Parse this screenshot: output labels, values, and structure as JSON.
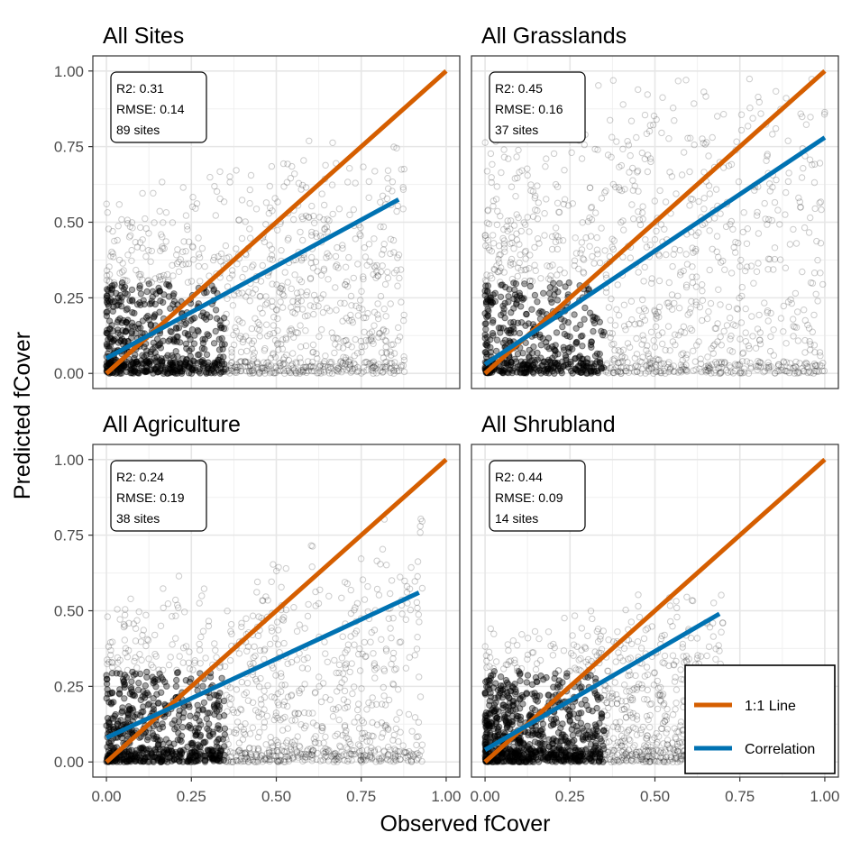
{
  "figure": {
    "xlabel": "Observed fCover",
    "ylabel": "Predicted fCover"
  },
  "legend": {
    "items": [
      {
        "label": "1:1 Line",
        "color": "#d55e00"
      },
      {
        "label": "Correlation",
        "color": "#0072b2"
      }
    ]
  },
  "chart_data": [
    {
      "type": "scatter",
      "title": "All Sites",
      "xlim": [
        -0.04,
        1.04
      ],
      "ylim": [
        -0.05,
        1.05
      ],
      "xticks": [
        "0.00",
        "0.25",
        "0.50",
        "0.75",
        "1.00"
      ],
      "yticks": [
        "0.00",
        "0.25",
        "0.50",
        "0.75",
        "1.00"
      ],
      "stats": {
        "r2": "R2: 0.31",
        "rmse": "RMSE: 0.14",
        "sites": "89 sites"
      },
      "one_to_one": {
        "x": [
          0,
          1
        ],
        "y": [
          0,
          1
        ]
      },
      "correlation": {
        "x": [
          0.0,
          0.86
        ],
        "y": [
          0.05,
          0.575
        ]
      },
      "point_cloud": {
        "x_range": [
          0,
          0.88
        ],
        "y_range": [
          0,
          0.77
        ],
        "dense_to_y": 0.6
      }
    },
    {
      "type": "scatter",
      "title": "All Grasslands",
      "xlim": [
        -0.04,
        1.04
      ],
      "ylim": [
        -0.05,
        1.05
      ],
      "xticks": [
        "0.00",
        "0.25",
        "0.50",
        "0.75",
        "1.00"
      ],
      "yticks": [
        "0.00",
        "0.25",
        "0.50",
        "0.75",
        "1.00"
      ],
      "stats": {
        "r2": "R2: 0.45",
        "rmse": "RMSE: 0.16",
        "sites": "37 sites"
      },
      "one_to_one": {
        "x": [
          0,
          1
        ],
        "y": [
          0,
          1
        ]
      },
      "correlation": {
        "x": [
          0.0,
          1.0
        ],
        "y": [
          0.03,
          0.78
        ]
      },
      "point_cloud": {
        "x_range": [
          0,
          1.0
        ],
        "y_range": [
          0,
          0.98
        ],
        "dense_to_y": 0.9
      }
    },
    {
      "type": "scatter",
      "title": "All Agriculture",
      "xlim": [
        -0.04,
        1.04
      ],
      "ylim": [
        -0.05,
        1.05
      ],
      "xticks": [
        "0.00",
        "0.25",
        "0.50",
        "0.75",
        "1.00"
      ],
      "yticks": [
        "0.00",
        "0.25",
        "0.50",
        "0.75",
        "1.00"
      ],
      "stats": {
        "r2": "R2: 0.24",
        "rmse": "RMSE: 0.19",
        "sites": "38 sites"
      },
      "one_to_one": {
        "x": [
          0,
          1
        ],
        "y": [
          0,
          1
        ]
      },
      "correlation": {
        "x": [
          0.0,
          0.92
        ],
        "y": [
          0.08,
          0.56
        ]
      },
      "point_cloud": {
        "x_range": [
          0,
          0.93
        ],
        "y_range": [
          0,
          0.82
        ],
        "dense_to_y": 0.55
      }
    },
    {
      "type": "scatter",
      "title": "All Shrubland",
      "xlim": [
        -0.04,
        1.04
      ],
      "ylim": [
        -0.05,
        1.05
      ],
      "xticks": [
        "0.00",
        "0.25",
        "0.50",
        "0.75",
        "1.00"
      ],
      "yticks": [
        "0.00",
        "0.25",
        "0.50",
        "0.75",
        "1.00"
      ],
      "stats": {
        "r2": "R2: 0.44",
        "rmse": "RMSE: 0.09",
        "sites": "14 sites"
      },
      "one_to_one": {
        "x": [
          0,
          1
        ],
        "y": [
          0,
          1
        ]
      },
      "correlation": {
        "x": [
          0.0,
          0.69
        ],
        "y": [
          0.04,
          0.49
        ]
      },
      "point_cloud": {
        "x_range": [
          0,
          0.7
        ],
        "y_range": [
          0,
          0.57
        ],
        "dense_to_y": 0.45
      }
    }
  ]
}
